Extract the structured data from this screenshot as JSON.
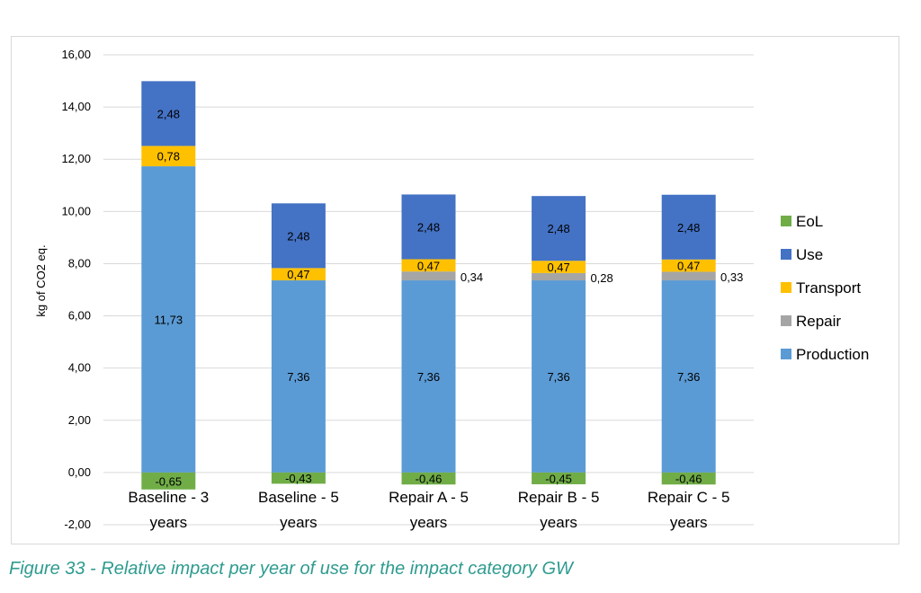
{
  "caption": "Figure 33 - Relative impact per year of use for the impact category GW",
  "colors": {
    "EoL": "#70ad47",
    "Use": "#4472c4",
    "Transport": "#ffc000",
    "Repair": "#a5a5a5",
    "Production": "#5b9bd5",
    "grid": "#d9d9d9",
    "text": "#000000",
    "caption": "#2e9b8f"
  },
  "chart_data": {
    "type": "bar",
    "stacked": true,
    "ylabel": "kg of CO2 eq.",
    "ylim": [
      -2,
      16
    ],
    "yticks": [
      "-2,00",
      "0,00",
      "2,00",
      "4,00",
      "6,00",
      "8,00",
      "10,00",
      "12,00",
      "14,00",
      "16,00"
    ],
    "categories": [
      [
        "Baseline - 3",
        "years"
      ],
      [
        "Baseline - 5",
        "years"
      ],
      [
        "Repair A - 5",
        "years"
      ],
      [
        "Repair B - 5",
        "years"
      ],
      [
        "Repair C - 5",
        "years"
      ]
    ],
    "legend_position": "right",
    "legend": [
      "EoL",
      "Use",
      "Transport",
      "Repair",
      "Production"
    ],
    "series": [
      {
        "name": "Production",
        "values": [
          11.73,
          7.36,
          7.36,
          7.36,
          7.36
        ],
        "labels": [
          "11,73",
          "7,36",
          "7,36",
          "7,36",
          "7,36"
        ]
      },
      {
        "name": "Repair",
        "values": [
          0,
          0,
          0.34,
          0.28,
          0.33
        ],
        "labels": [
          "",
          "",
          "0,34",
          "0,28",
          "0,33"
        ]
      },
      {
        "name": "Transport",
        "values": [
          0.78,
          0.47,
          0.47,
          0.47,
          0.47
        ],
        "labels": [
          "0,78",
          "0,47",
          "0,47",
          "0,47",
          "0,47"
        ]
      },
      {
        "name": "Use",
        "values": [
          2.48,
          2.48,
          2.48,
          2.48,
          2.48
        ],
        "labels": [
          "2,48",
          "2,48",
          "2,48",
          "2,48",
          "2,48"
        ]
      },
      {
        "name": "EoL",
        "values": [
          -0.65,
          -0.43,
          -0.46,
          -0.45,
          -0.46
        ],
        "labels": [
          "-0,65",
          "-0,43",
          "-0,46",
          "-0,45",
          "-0,46"
        ]
      }
    ]
  }
}
